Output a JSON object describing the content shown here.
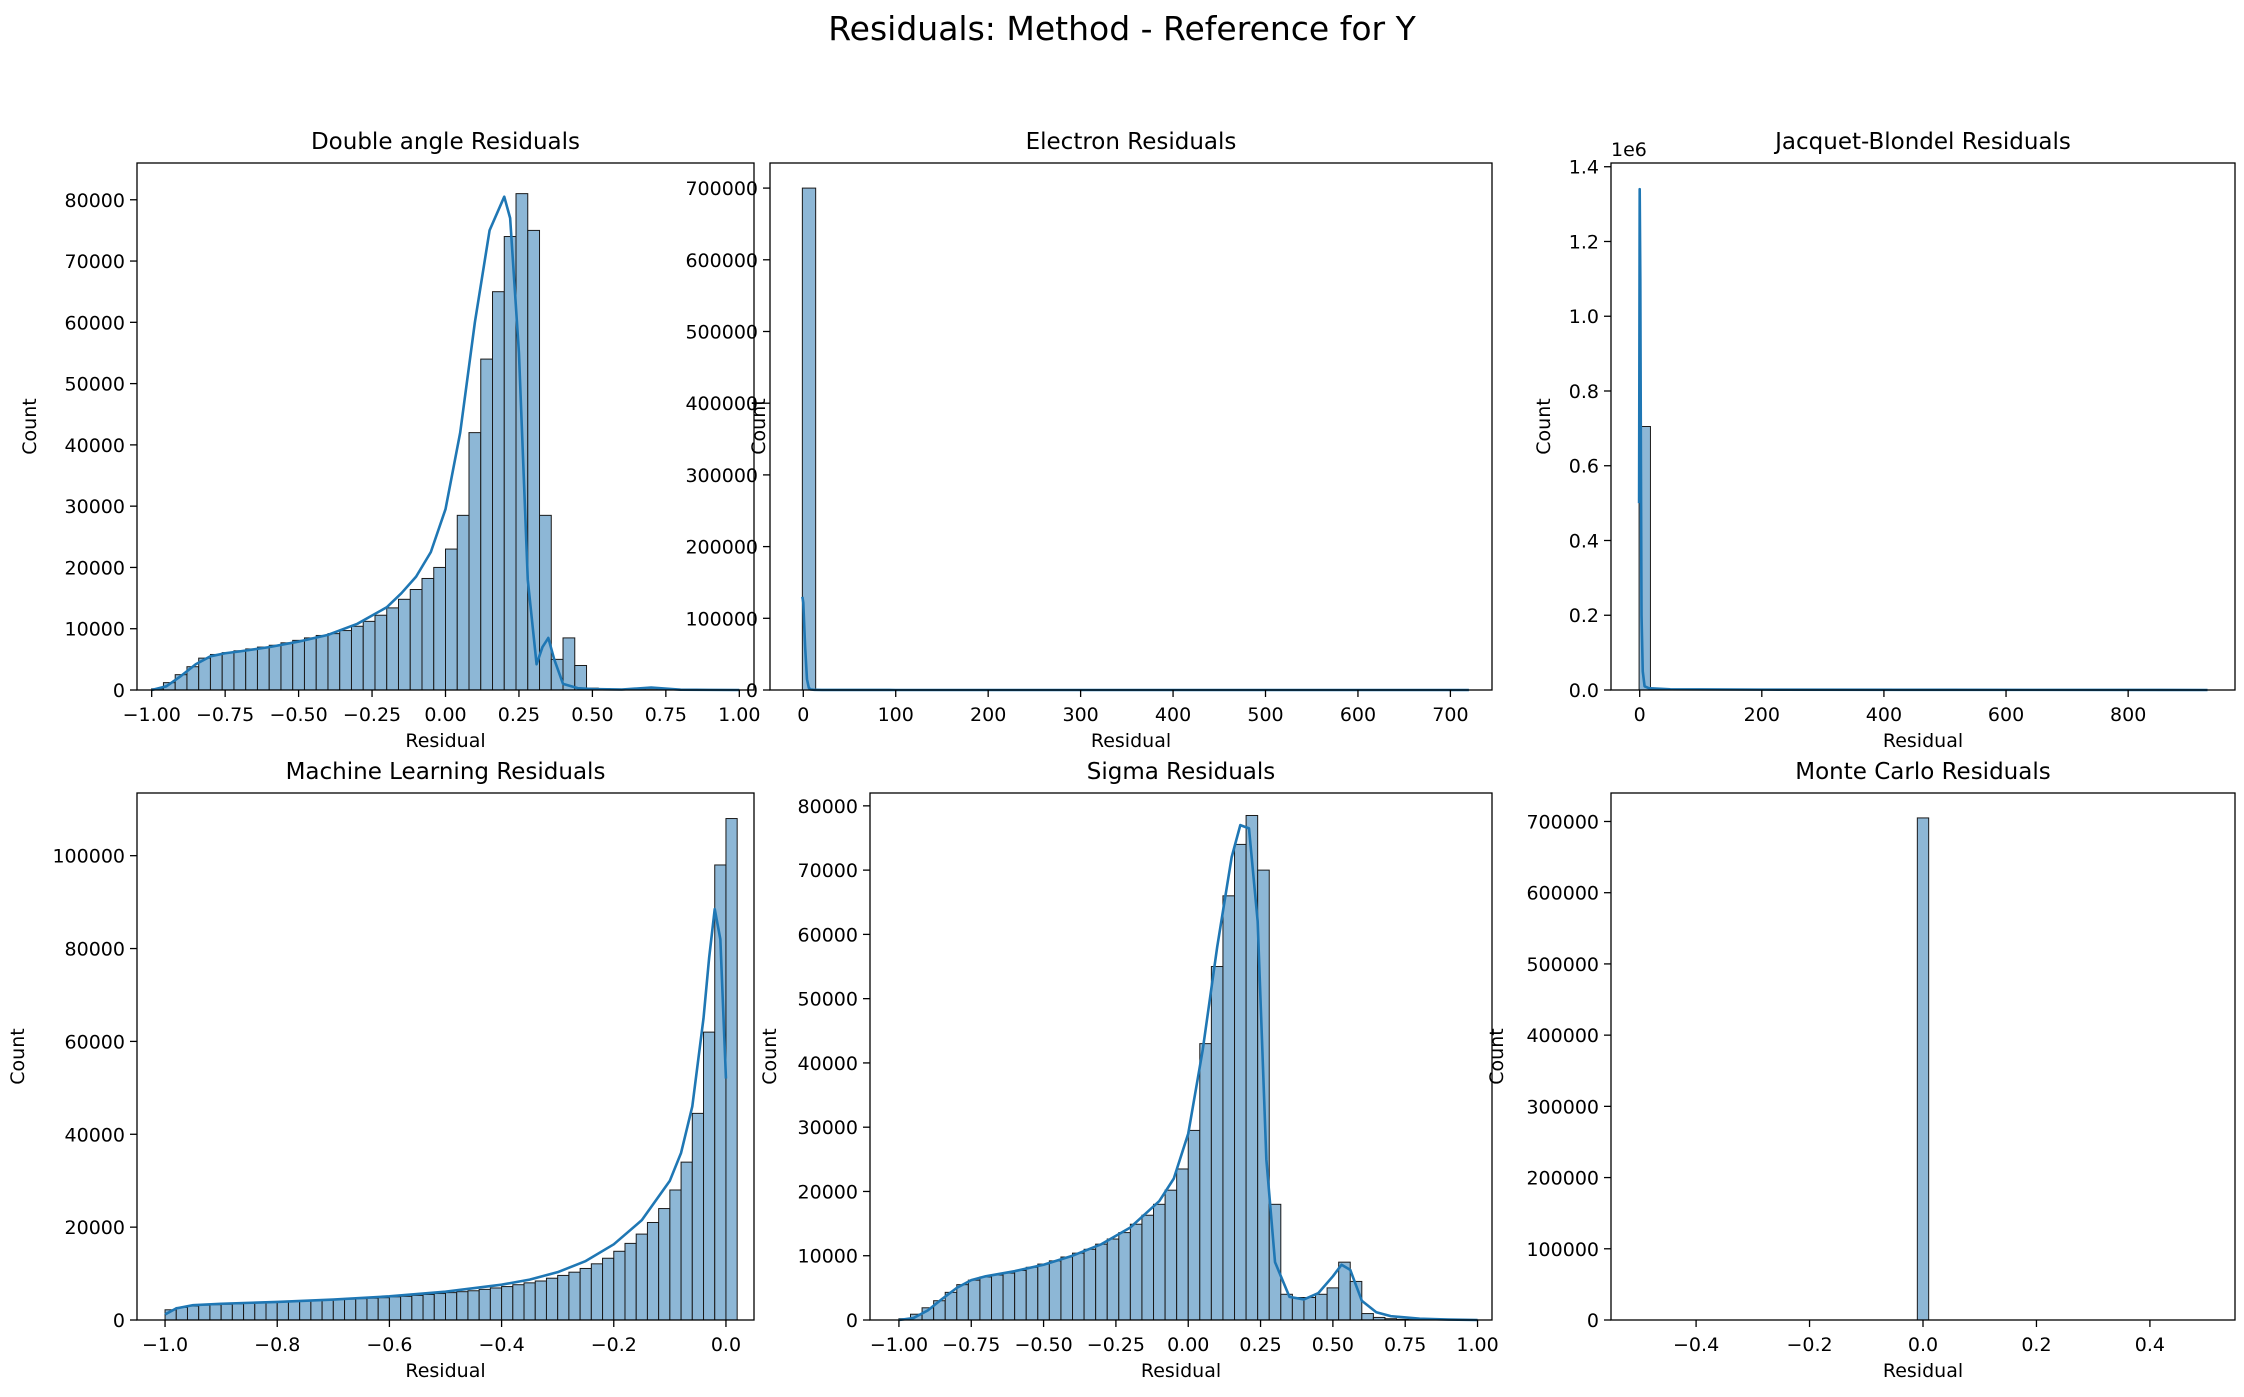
{
  "figure": {
    "suptitle": "Residuals: Method - Reference for Y"
  },
  "colors": {
    "bar_fill": "#8db7d6",
    "bar_edge": "#1a1a1a",
    "kde_line": "#1f77b4",
    "axes": "#000000"
  },
  "chart_data": [
    {
      "type": "bar",
      "title": "Double angle Residuals",
      "xlabel": "Residual",
      "ylabel": "Count",
      "xlim": [
        -1.05,
        1.05
      ],
      "ylim": [
        0,
        86000
      ],
      "xticks": [
        -1.0,
        -0.75,
        -0.5,
        -0.25,
        0.0,
        0.25,
        0.5,
        0.75,
        1.0
      ],
      "xtick_labels": [
        "−1.00",
        "−0.75",
        "−0.50",
        "−0.25",
        "0.00",
        "0.25",
        "0.50",
        "0.75",
        "1.00"
      ],
      "yticks": [
        0,
        10000,
        20000,
        30000,
        40000,
        50000,
        60000,
        70000,
        80000
      ],
      "ytick_labels": [
        "0",
        "10000",
        "20000",
        "30000",
        "40000",
        "50000",
        "60000",
        "70000",
        "80000"
      ],
      "bin_start": -1.0,
      "bin_width": 0.04,
      "values": [
        200,
        1200,
        2500,
        3800,
        5200,
        5800,
        6100,
        6400,
        6700,
        7000,
        7300,
        7700,
        8100,
        8500,
        8900,
        9200,
        9700,
        10400,
        11200,
        12200,
        13400,
        14800,
        16400,
        18200,
        20000,
        23000,
        28500,
        42000,
        54000,
        65000,
        74000,
        81000,
        75000,
        28500,
        5000,
        8500,
        4000,
        300,
        200,
        120,
        80,
        60,
        50,
        40,
        40,
        30,
        20,
        20,
        10,
        10
      ],
      "kde": {
        "x": [
          -1.0,
          -0.95,
          -0.9,
          -0.85,
          -0.8,
          -0.75,
          -0.7,
          -0.6,
          -0.5,
          -0.4,
          -0.3,
          -0.2,
          -0.15,
          -0.1,
          -0.05,
          0.0,
          0.05,
          0.1,
          0.15,
          0.2,
          0.22,
          0.25,
          0.28,
          0.31,
          0.33,
          0.35,
          0.37,
          0.4,
          0.45,
          0.5,
          0.6,
          0.7,
          0.8,
          0.9,
          1.0
        ],
        "y": [
          0,
          600,
          2300,
          4200,
          5500,
          6000,
          6300,
          7000,
          7900,
          9000,
          10800,
          13500,
          15800,
          18500,
          22500,
          29500,
          42000,
          60000,
          75000,
          80500,
          77000,
          55000,
          18000,
          4200,
          7000,
          8500,
          5000,
          1000,
          300,
          150,
          80,
          400,
          50,
          20,
          0
        ]
      }
    },
    {
      "type": "bar",
      "title": "Electron Residuals",
      "xlabel": "Residual",
      "ylabel": "Count",
      "xlim": [
        -36,
        745
      ],
      "ylim": [
        0,
        735000
      ],
      "xticks": [
        0,
        100,
        200,
        300,
        400,
        500,
        600,
        700
      ],
      "xtick_labels": [
        "0",
        "100",
        "200",
        "300",
        "400",
        "500",
        "600",
        "700"
      ],
      "yticks": [
        0,
        100000,
        200000,
        300000,
        400000,
        500000,
        600000,
        700000
      ],
      "ytick_labels": [
        "0",
        "100000",
        "200000",
        "300000",
        "400000",
        "500000",
        "600000",
        "700000"
      ],
      "bin_start": -1.0,
      "bin_width": 14.4,
      "values": [
        700000
      ],
      "kde": {
        "x": [
          -1,
          0,
          2,
          4,
          6,
          8,
          12,
          20,
          50,
          100,
          300,
          500,
          720
        ],
        "y": [
          130000,
          122000,
          60000,
          15000,
          3000,
          800,
          200,
          100,
          50,
          20,
          10,
          10,
          0
        ]
      }
    },
    {
      "type": "bar",
      "title": "Jacquet-Blondel Residuals",
      "xlabel": "Residual",
      "ylabel": "Count",
      "y_offset_label": "1e6",
      "xlim": [
        -47,
        975
      ],
      "ylim": [
        0,
        1.41
      ],
      "xticks": [
        0,
        200,
        400,
        600,
        800
      ],
      "xtick_labels": [
        "0",
        "200",
        "400",
        "600",
        "800"
      ],
      "yticks": [
        0,
        0.2,
        0.4,
        0.6,
        0.8,
        1.0,
        1.2,
        1.4
      ],
      "ytick_labels": [
        "0.0",
        "0.2",
        "0.4",
        "0.6",
        "0.8",
        "1.0",
        "1.2",
        "1.4"
      ],
      "bin_start": -1.0,
      "bin_width": 18.6,
      "values": [
        0.705
      ],
      "kde": {
        "x": [
          -1,
          0,
          1,
          2,
          3,
          5,
          8,
          15,
          50,
          200,
          500,
          930
        ],
        "y": [
          0.5,
          1.34,
          1.1,
          0.6,
          0.2,
          0.05,
          0.01,
          0.005,
          0.002,
          0.001,
          0.0005,
          0
        ]
      }
    },
    {
      "type": "bar",
      "title": "Machine Learning Residuals",
      "xlabel": "Residual",
      "ylabel": "Count",
      "xlim": [
        -1.05,
        0.05
      ],
      "ylim": [
        0,
        113500
      ],
      "xticks": [
        -1.0,
        -0.8,
        -0.6,
        -0.4,
        -0.2,
        0.0
      ],
      "xtick_labels": [
        "−1.0",
        "−0.8",
        "−0.6",
        "−0.4",
        "−0.2",
        "0.0"
      ],
      "yticks": [
        0,
        20000,
        40000,
        60000,
        80000,
        100000
      ],
      "ytick_labels": [
        "0",
        "20000",
        "40000",
        "60000",
        "80000",
        "100000"
      ],
      "bin_start": -1.0,
      "bin_width": 0.02,
      "values": [
        2200,
        2700,
        3000,
        3200,
        3300,
        3400,
        3500,
        3600,
        3700,
        3800,
        3900,
        4000,
        4100,
        4200,
        4300,
        4400,
        4500,
        4600,
        4700,
        4800,
        5000,
        5100,
        5300,
        5500,
        5700,
        5900,
        6100,
        6300,
        6600,
        6900,
        7200,
        7600,
        8000,
        8400,
        9000,
        9600,
        10300,
        11100,
        12100,
        13300,
        14800,
        16500,
        18500,
        21000,
        24000,
        28000,
        34000,
        44500,
        62000,
        98000,
        108000
      ],
      "kde": {
        "x": [
          -1.0,
          -0.98,
          -0.95,
          -0.9,
          -0.8,
          -0.7,
          -0.6,
          -0.5,
          -0.4,
          -0.35,
          -0.3,
          -0.25,
          -0.2,
          -0.15,
          -0.1,
          -0.08,
          -0.06,
          -0.04,
          -0.03,
          -0.02,
          -0.01,
          0.0
        ],
        "y": [
          1200,
          2500,
          3200,
          3500,
          3900,
          4400,
          5100,
          6100,
          7600,
          8700,
          10300,
          12700,
          16300,
          21500,
          30000,
          36000,
          46000,
          65000,
          78000,
          88500,
          82000,
          52000
        ]
      }
    },
    {
      "type": "bar",
      "title": "Sigma Residuals",
      "xlabel": "Residual",
      "ylabel": "Count",
      "xlim": [
        -1.1,
        1.05
      ],
      "ylim": [
        0,
        82000
      ],
      "xticks": [
        -1.0,
        -0.75,
        -0.5,
        -0.25,
        0.0,
        0.25,
        0.5,
        0.75,
        1.0
      ],
      "xtick_labels": [
        "−1.00",
        "−0.75",
        "−0.50",
        "−0.25",
        "0.00",
        "0.25",
        "0.50",
        "0.75",
        "1.00"
      ],
      "yticks": [
        0,
        10000,
        20000,
        30000,
        40000,
        50000,
        60000,
        70000,
        80000
      ],
      "ytick_labels": [
        "0",
        "10000",
        "20000",
        "30000",
        "40000",
        "50000",
        "60000",
        "70000",
        "80000"
      ],
      "bin_start": -1.0,
      "bin_width": 0.04,
      "values": [
        200,
        900,
        1900,
        3000,
        4300,
        5500,
        6200,
        6700,
        7000,
        7300,
        7700,
        8200,
        8700,
        9200,
        9800,
        10400,
        11000,
        11800,
        12600,
        13600,
        14900,
        16300,
        18000,
        20200,
        23500,
        29500,
        43000,
        55000,
        66000,
        74000,
        78500,
        70000,
        18000,
        4000,
        3500,
        3500,
        4000,
        5000,
        9000,
        6000,
        1000,
        400,
        200,
        100,
        60,
        40,
        30,
        20,
        10,
        10
      ],
      "kde": {
        "x": [
          -1.0,
          -0.95,
          -0.9,
          -0.85,
          -0.8,
          -0.75,
          -0.7,
          -0.6,
          -0.5,
          -0.4,
          -0.3,
          -0.2,
          -0.1,
          -0.05,
          0.0,
          0.05,
          0.1,
          0.15,
          0.18,
          0.21,
          0.24,
          0.27,
          0.3,
          0.35,
          0.4,
          0.45,
          0.5,
          0.53,
          0.56,
          0.6,
          0.65,
          0.7,
          0.8,
          0.9,
          1.0
        ],
        "y": [
          0,
          300,
          1500,
          3300,
          5000,
          6200,
          6800,
          7600,
          8600,
          10000,
          11800,
          14400,
          18500,
          22000,
          29000,
          42000,
          58000,
          72000,
          77000,
          76500,
          62000,
          25000,
          9000,
          3600,
          3200,
          4200,
          6800,
          8600,
          7800,
          3000,
          1200,
          600,
          200,
          60,
          0
        ]
      }
    },
    {
      "type": "bar",
      "title": "Monte Carlo Residuals",
      "xlabel": "Residual",
      "ylabel": "Count",
      "xlim": [
        -0.55,
        0.55
      ],
      "ylim": [
        0,
        740000
      ],
      "xticks": [
        -0.4,
        -0.2,
        0.0,
        0.2,
        0.4
      ],
      "xtick_labels": [
        "−0.4",
        "−0.2",
        "0.0",
        "0.2",
        "0.4"
      ],
      "yticks": [
        0,
        100000,
        200000,
        300000,
        400000,
        500000,
        600000,
        700000
      ],
      "ytick_labels": [
        "0",
        "100000",
        "200000",
        "300000",
        "400000",
        "500000",
        "600000",
        "700000"
      ],
      "bin_start": -0.01,
      "bin_width": 0.02,
      "values": [
        705000
      ]
    }
  ]
}
